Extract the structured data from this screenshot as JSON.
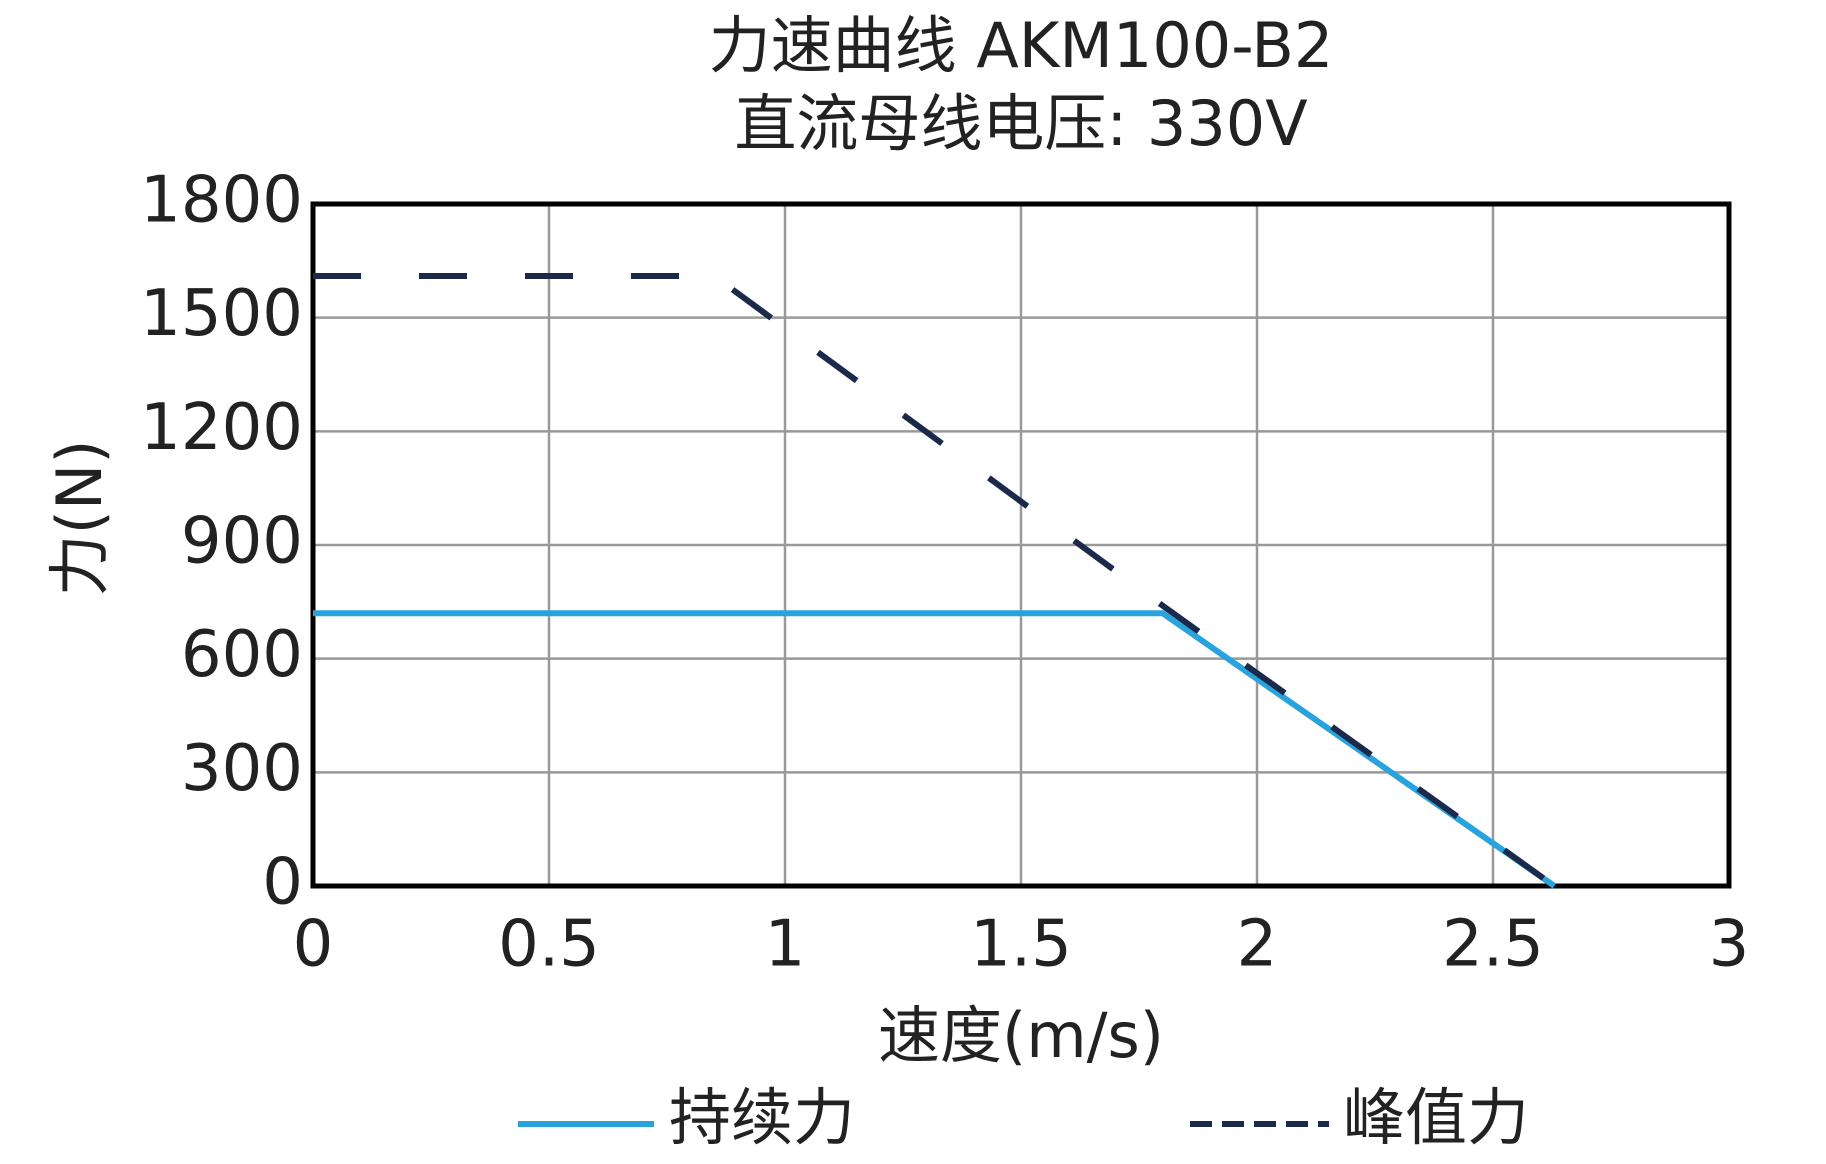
{
  "chart_data": {
    "type": "line",
    "title": "力速曲线 AKM100-B2",
    "subtitle": "直流母线电压: 330V",
    "x_label": "速度(m/s)",
    "y_label": "力(N)",
    "xlim": [
      0,
      3
    ],
    "xticks": [
      0,
      0.5,
      1,
      1.5,
      2,
      2.5,
      3
    ],
    "ylim": [
      0,
      1800
    ],
    "yticks": [
      0,
      300,
      600,
      900,
      1200,
      1500,
      1800
    ],
    "grid": true,
    "legend": "bottom",
    "series": [
      {
        "name": "持续力",
        "color": "#29a3dd",
        "dash": false,
        "x": [
          0,
          1.8,
          2.63
        ],
        "values": [
          720,
          720,
          0
        ]
      },
      {
        "name": "峰值力",
        "color": "#1b2a4a",
        "dash": true,
        "x": [
          0,
          0.85,
          1.8,
          2.63
        ],
        "values": [
          1610,
          1610,
          740,
          0
        ]
      }
    ]
  }
}
